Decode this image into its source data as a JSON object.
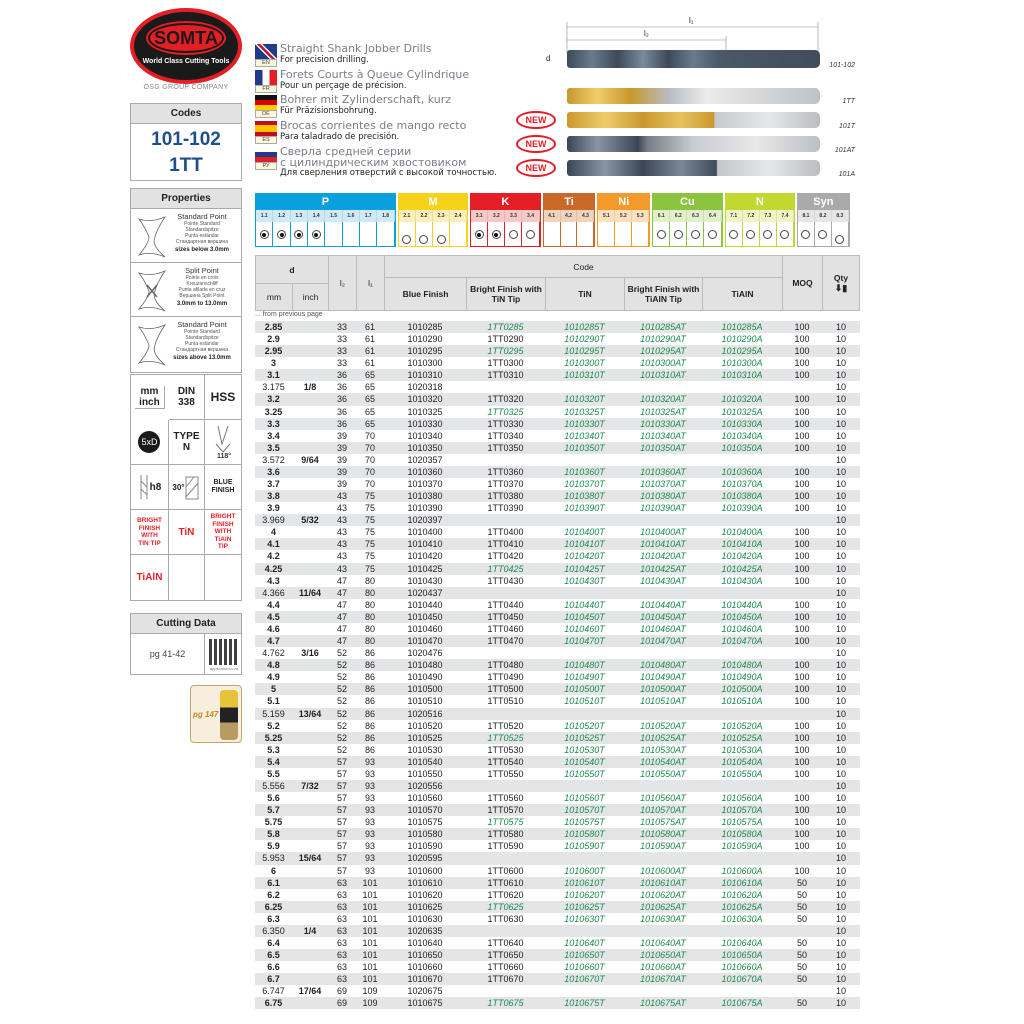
{
  "brand": {
    "logo_text": "SOMTA",
    "tagline": "World Class Cutting Tools",
    "group": "OSG GROUP COMPANY"
  },
  "codes": {
    "title": "Codes",
    "line1": "101-102",
    "line2": "1TT"
  },
  "languages": [
    {
      "code": "EN",
      "title": "Straight Shank Jobber Drills",
      "subtitle": "For precision drilling."
    },
    {
      "code": "FR",
      "title": "Forets Courts à Queue Cylindrique",
      "subtitle": "Pour un perçage de précision."
    },
    {
      "code": "DE",
      "title": "Bohrer mit Zylinderschaft, kurz",
      "subtitle": "Für Präzisionsbohrung."
    },
    {
      "code": "ES",
      "title": "Brocas corrientes de mango recto",
      "subtitle": "Para taladrado de precisión."
    },
    {
      "code": "РУ",
      "title": "Сверла средней серии",
      "title2": "с цилиндрическим хвостовиком",
      "subtitle": "Для сверления отверстий с высокой точностью."
    }
  ],
  "drill_images": {
    "dim_l1": "l₁",
    "dim_l2": "l₂",
    "dim_d": "d",
    "new_badge": "NEW",
    "labels": [
      "101-102",
      "1TT",
      "101T",
      "101AT",
      "101A"
    ]
  },
  "properties": {
    "title": "Properties",
    "items": [
      {
        "name": "Standard Point",
        "fr": "Pointe Standard",
        "de": "Standardspitze",
        "es": "Punta estándar",
        "ru": "Стандартная вершина",
        "size": "sizes below 3.0mm"
      },
      {
        "name": "Split Point",
        "fr": "Pointe en croix",
        "de": "Kreuzanschliff",
        "es": "Punta afilada en cruz",
        "ru": "Вершина Split Point",
        "size": "3.0mm to 13.0mm"
      },
      {
        "name": "Standard Point",
        "fr": "Pointe Standard",
        "de": "Standardspitze",
        "es": "Punta estándar",
        "ru": "Стандартная вершина",
        "size": "sizes above 13.0mm"
      }
    ]
  },
  "icons": {
    "mm_inch": "mm inch",
    "din": "DIN 338",
    "hss": "HSS",
    "xd": "5xD",
    "type": "TYPE N",
    "angle": "118°",
    "tol": "h8",
    "helix": "30°",
    "blue": "BLUE FINISH",
    "bright_tin": "BRIGHT FINISH WITH TIN TIP",
    "tin": "TiN",
    "bright_tialn": "BRIGHT FINISH WITH TiAlN TIP",
    "tialn": "TiAlN"
  },
  "cutting_data": {
    "title": "Cutting Data",
    "page": "pg 41-42",
    "qr_caption": "appsomta.co.za"
  },
  "spray": {
    "page": "pg 147"
  },
  "materials": [
    {
      "label": "P",
      "color": "#0aa0dc",
      "light": "#cfe9f6",
      "subs": [
        "1.1",
        "1.2",
        "1.3",
        "1.4",
        "1.5",
        "1.6",
        "1.7",
        "1.8"
      ],
      "marks": [
        "full",
        "full",
        "full",
        "full",
        "",
        "",
        "",
        ""
      ]
    },
    {
      "label": "M",
      "color": "#f6d21a",
      "light": "#fbf0b8",
      "subs": [
        "2.1",
        "2.2",
        "2.3",
        "2.4"
      ],
      "marks": [
        "limited",
        "limited",
        "limited",
        ""
      ]
    },
    {
      "label": "K",
      "color": "#e31e24",
      "light": "#f7c9c6",
      "subs": [
        "3.1",
        "3.2",
        "3.3",
        "3.4"
      ],
      "marks": [
        "full",
        "full",
        "open",
        "open"
      ]
    },
    {
      "label": "Ti",
      "color": "#c8692a",
      "light": "#f0d3bd",
      "subs": [
        "4.1",
        "4.2",
        "4.3"
      ],
      "marks": [
        "",
        "",
        ""
      ]
    },
    {
      "label": "Ni",
      "color": "#f39a2b",
      "light": "#fbe0bd",
      "subs": [
        "5.1",
        "5.2",
        "5.3"
      ],
      "marks": [
        "",
        "",
        ""
      ]
    },
    {
      "label": "Cu",
      "color": "#8cc43f",
      "light": "#e1efcb",
      "subs": [
        "6.1",
        "6.2",
        "6.3",
        "6.4"
      ],
      "marks": [
        "open",
        "open",
        "open",
        "open"
      ]
    },
    {
      "label": "N",
      "color": "#c2d831",
      "light": "#eef4c2",
      "subs": [
        "7.1",
        "7.2",
        "7.3",
        "7.4"
      ],
      "marks": [
        "open",
        "open",
        "open",
        "open"
      ]
    },
    {
      "label": "Syn",
      "color": "#aaaaaa",
      "light": "#e6e6e6",
      "subs": [
        "8.1",
        "8.2",
        "8.3"
      ],
      "marks": [
        "open",
        "open",
        "limited"
      ]
    }
  ],
  "table": {
    "headers": {
      "d": "d",
      "mm": "mm",
      "inch": "inch",
      "l2": "l₂",
      "l1": "l₁",
      "code": "Code",
      "blue": "Blue Finish",
      "bright_tin": "Bright Finish with TiN Tip",
      "tin": "TiN",
      "bright_tialn": "Bright Finish with TiAlN Tip",
      "tialn": "TiAlN",
      "moq": "MOQ",
      "qty": "Qty"
    },
    "continued": "... from previous page",
    "columns": [
      "mm",
      "inch",
      "l2",
      "l1",
      "blue",
      "bright_tin",
      "tin",
      "bright_tialn",
      "tialn",
      "moq",
      "qty"
    ],
    "rows": [
      [
        "2.85",
        "",
        "33",
        "61",
        "1010285",
        "1TT0285",
        "1010285T",
        "1010285AT",
        "1010285A",
        "100",
        "10"
      ],
      [
        "2.9",
        "",
        "33",
        "61",
        "1010290",
        "1TT0290",
        "1010290T",
        "1010290AT",
        "1010290A",
        "100",
        "10"
      ],
      [
        "2.95",
        "",
        "33",
        "61",
        "1010295",
        "1TT0295",
        "1010295T",
        "1010295AT",
        "1010295A",
        "100",
        "10"
      ],
      [
        "3",
        "",
        "33",
        "61",
        "1010300",
        "1TT0300",
        "1010300T",
        "1010300AT",
        "1010300A",
        "100",
        "10"
      ],
      [
        "3.1",
        "",
        "36",
        "65",
        "1010310",
        "1TT0310",
        "1010310T",
        "1010310AT",
        "1010310A",
        "100",
        "10"
      ],
      [
        "3.175",
        "1/8",
        "36",
        "65",
        "1020318",
        "",
        "",
        "",
        "",
        "",
        "10"
      ],
      [
        "3.2",
        "",
        "36",
        "65",
        "1010320",
        "1TT0320",
        "1010320T",
        "1010320AT",
        "1010320A",
        "100",
        "10"
      ],
      [
        "3.25",
        "",
        "36",
        "65",
        "1010325",
        "1TT0325",
        "1010325T",
        "1010325AT",
        "1010325A",
        "100",
        "10"
      ],
      [
        "3.3",
        "",
        "36",
        "65",
        "1010330",
        "1TT0330",
        "1010330T",
        "1010330AT",
        "1010330A",
        "100",
        "10"
      ],
      [
        "3.4",
        "",
        "39",
        "70",
        "1010340",
        "1TT0340",
        "1010340T",
        "1010340AT",
        "1010340A",
        "100",
        "10"
      ],
      [
        "3.5",
        "",
        "39",
        "70",
        "1010350",
        "1TT0350",
        "1010350T",
        "1010350AT",
        "1010350A",
        "100",
        "10"
      ],
      [
        "3.572",
        "9/64",
        "39",
        "70",
        "1020357",
        "",
        "",
        "",
        "",
        "",
        "10"
      ],
      [
        "3.6",
        "",
        "39",
        "70",
        "1010360",
        "1TT0360",
        "1010360T",
        "1010360AT",
        "1010360A",
        "100",
        "10"
      ],
      [
        "3.7",
        "",
        "39",
        "70",
        "1010370",
        "1TT0370",
        "1010370T",
        "1010370AT",
        "1010370A",
        "100",
        "10"
      ],
      [
        "3.8",
        "",
        "43",
        "75",
        "1010380",
        "1TT0380",
        "1010380T",
        "1010380AT",
        "1010380A",
        "100",
        "10"
      ],
      [
        "3.9",
        "",
        "43",
        "75",
        "1010390",
        "1TT0390",
        "1010390T",
        "1010390AT",
        "1010390A",
        "100",
        "10"
      ],
      [
        "3.969",
        "5/32",
        "43",
        "75",
        "1020397",
        "",
        "",
        "",
        "",
        "",
        "10"
      ],
      [
        "4",
        "",
        "43",
        "75",
        "1010400",
        "1TT0400",
        "1010400T",
        "1010400AT",
        "1010400A",
        "100",
        "10"
      ],
      [
        "4.1",
        "",
        "43",
        "75",
        "1010410",
        "1TT0410",
        "1010410T",
        "1010410AT",
        "1010410A",
        "100",
        "10"
      ],
      [
        "4.2",
        "",
        "43",
        "75",
        "1010420",
        "1TT0420",
        "1010420T",
        "1010420AT",
        "1010420A",
        "100",
        "10"
      ],
      [
        "4.25",
        "",
        "43",
        "75",
        "1010425",
        "1TT0425",
        "1010425T",
        "1010425AT",
        "1010425A",
        "100",
        "10"
      ],
      [
        "4.3",
        "",
        "47",
        "80",
        "1010430",
        "1TT0430",
        "1010430T",
        "1010430AT",
        "1010430A",
        "100",
        "10"
      ],
      [
        "4.366",
        "11/64",
        "47",
        "80",
        "1020437",
        "",
        "",
        "",
        "",
        "",
        "10"
      ],
      [
        "4.4",
        "",
        "47",
        "80",
        "1010440",
        "1TT0440",
        "1010440T",
        "1010440AT",
        "1010440A",
        "100",
        "10"
      ],
      [
        "4.5",
        "",
        "47",
        "80",
        "1010450",
        "1TT0450",
        "1010450T",
        "1010450AT",
        "1010450A",
        "100",
        "10"
      ],
      [
        "4.6",
        "",
        "47",
        "80",
        "1010460",
        "1TT0460",
        "1010460T",
        "1010460AT",
        "1010460A",
        "100",
        "10"
      ],
      [
        "4.7",
        "",
        "47",
        "80",
        "1010470",
        "1TT0470",
        "1010470T",
        "1010470AT",
        "1010470A",
        "100",
        "10"
      ],
      [
        "4.762",
        "3/16",
        "52",
        "86",
        "1020476",
        "",
        "",
        "",
        "",
        "",
        "10"
      ],
      [
        "4.8",
        "",
        "52",
        "86",
        "1010480",
        "1TT0480",
        "1010480T",
        "1010480AT",
        "1010480A",
        "100",
        "10"
      ],
      [
        "4.9",
        "",
        "52",
        "86",
        "1010490",
        "1TT0490",
        "1010490T",
        "1010490AT",
        "1010490A",
        "100",
        "10"
      ],
      [
        "5",
        "",
        "52",
        "86",
        "1010500",
        "1TT0500",
        "1010500T",
        "1010500AT",
        "1010500A",
        "100",
        "10"
      ],
      [
        "5.1",
        "",
        "52",
        "86",
        "1010510",
        "1TT0510",
        "1010510T",
        "1010510AT",
        "1010510A",
        "100",
        "10"
      ],
      [
        "5.159",
        "13/64",
        "52",
        "86",
        "1020516",
        "",
        "",
        "",
        "",
        "",
        "10"
      ],
      [
        "5.2",
        "",
        "52",
        "86",
        "1010520",
        "1TT0520",
        "1010520T",
        "1010520AT",
        "1010520A",
        "100",
        "10"
      ],
      [
        "5.25",
        "",
        "52",
        "86",
        "1010525",
        "1TT0525",
        "1010525T",
        "1010525AT",
        "1010525A",
        "100",
        "10"
      ],
      [
        "5.3",
        "",
        "52",
        "86",
        "1010530",
        "1TT0530",
        "1010530T",
        "1010530AT",
        "1010530A",
        "100",
        "10"
      ],
      [
        "5.4",
        "",
        "57",
        "93",
        "1010540",
        "1TT0540",
        "1010540T",
        "1010540AT",
        "1010540A",
        "100",
        "10"
      ],
      [
        "5.5",
        "",
        "57",
        "93",
        "1010550",
        "1TT0550",
        "1010550T",
        "1010550AT",
        "1010550A",
        "100",
        "10"
      ],
      [
        "5.556",
        "7/32",
        "57",
        "93",
        "1020556",
        "",
        "",
        "",
        "",
        "",
        "10"
      ],
      [
        "5.6",
        "",
        "57",
        "93",
        "1010560",
        "1TT0560",
        "1010560T",
        "1010560AT",
        "1010560A",
        "100",
        "10"
      ],
      [
        "5.7",
        "",
        "57",
        "93",
        "1010570",
        "1TT0570",
        "1010570T",
        "1010570AT",
        "1010570A",
        "100",
        "10"
      ],
      [
        "5.75",
        "",
        "57",
        "93",
        "1010575",
        "1TT0575",
        "1010575T",
        "1010575AT",
        "1010575A",
        "100",
        "10"
      ],
      [
        "5.8",
        "",
        "57",
        "93",
        "1010580",
        "1TT0580",
        "1010580T",
        "1010580AT",
        "1010580A",
        "100",
        "10"
      ],
      [
        "5.9",
        "",
        "57",
        "93",
        "1010590",
        "1TT0590",
        "1010590T",
        "1010590AT",
        "1010590A",
        "100",
        "10"
      ],
      [
        "5.953",
        "15/64",
        "57",
        "93",
        "1020595",
        "",
        "",
        "",
        "",
        "",
        "10"
      ],
      [
        "6",
        "",
        "57",
        "93",
        "1010600",
        "1TT0600",
        "1010600T",
        "1010600AT",
        "1010600A",
        "100",
        "10"
      ],
      [
        "6.1",
        "",
        "63",
        "101",
        "1010610",
        "1TT0610",
        "1010610T",
        "1010610AT",
        "1010610A",
        "50",
        "10"
      ],
      [
        "6.2",
        "",
        "63",
        "101",
        "1010620",
        "1TT0620",
        "1010620T",
        "1010620AT",
        "1010620A",
        "50",
        "10"
      ],
      [
        "6.25",
        "",
        "63",
        "101",
        "1010625",
        "1TT0625",
        "1010625T",
        "1010625AT",
        "1010625A",
        "50",
        "10"
      ],
      [
        "6.3",
        "",
        "63",
        "101",
        "1010630",
        "1TT0630",
        "1010630T",
        "1010630AT",
        "1010630A",
        "50",
        "10"
      ],
      [
        "6.350",
        "1/4",
        "63",
        "101",
        "1020635",
        "",
        "",
        "",
        "",
        "",
        "10"
      ],
      [
        "6.4",
        "",
        "63",
        "101",
        "1010640",
        "1TT0640",
        "1010640T",
        "1010640AT",
        "1010640A",
        "50",
        "10"
      ],
      [
        "6.5",
        "",
        "63",
        "101",
        "1010650",
        "1TT0650",
        "1010650T",
        "1010650AT",
        "1010650A",
        "50",
        "10"
      ],
      [
        "6.6",
        "",
        "63",
        "101",
        "1010660",
        "1TT0660",
        "1010660T",
        "1010660AT",
        "1010660A",
        "50",
        "10"
      ],
      [
        "6.7",
        "",
        "63",
        "101",
        "1010670",
        "1TT0670",
        "1010670T",
        "1010670AT",
        "1010670A",
        "50",
        "10"
      ],
      [
        "6.747",
        "17/64",
        "69",
        "109",
        "1020675",
        "",
        "",
        "",
        "",
        "",
        "10"
      ],
      [
        "6.75",
        "",
        "69",
        "109",
        "1010675",
        "1TT0675",
        "1010675T",
        "1010675AT",
        "1010675A",
        "50",
        "10"
      ]
    ]
  }
}
